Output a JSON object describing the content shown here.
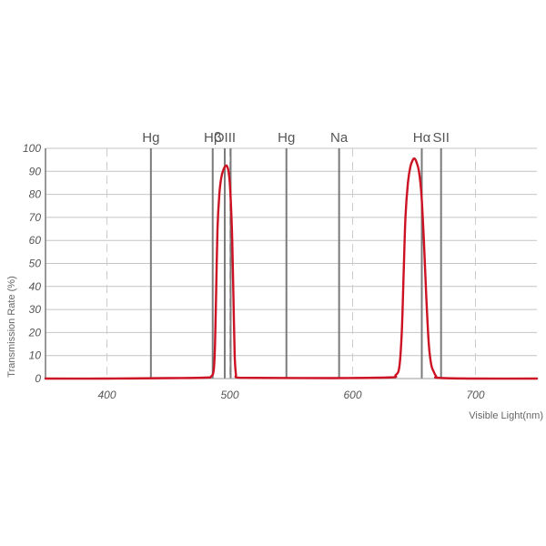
{
  "chart_data": {
    "type": "line",
    "title": "",
    "xlabel": "Visible Light(nm)",
    "ylabel": "Transmission Rate (%)",
    "xlim": [
      350,
      750
    ],
    "ylim": [
      0,
      100
    ],
    "x_ticks": [
      400,
      500,
      600,
      700
    ],
    "y_ticks": [
      0,
      10,
      20,
      30,
      40,
      50,
      60,
      70,
      80,
      90,
      100
    ],
    "grid": {
      "y": true,
      "x": "dashed at ticks"
    },
    "emission_lines": [
      {
        "label": "Hg",
        "x": 435.8
      },
      {
        "label": "Hβ",
        "x": 486.1
      },
      {
        "label": "OIII",
        "x": 495.9
      },
      {
        "label": "OIII",
        "x": 500.7,
        "hide_label": true
      },
      {
        "label": "Hg",
        "x": 546.1
      },
      {
        "label": "Na",
        "x": 589.0
      },
      {
        "label": "Hα",
        "x": 656.3
      },
      {
        "label": "SII",
        "x": 672.0
      }
    ],
    "series": [
      {
        "color": "#cc1122",
        "points": [
          [
            350,
            0
          ],
          [
            400,
            0
          ],
          [
            450,
            0.2
          ],
          [
            480,
            0.4
          ],
          [
            485,
            1
          ],
          [
            487,
            4
          ],
          [
            488,
            15
          ],
          [
            489,
            40
          ],
          [
            490,
            65
          ],
          [
            491.5,
            80
          ],
          [
            493,
            87
          ],
          [
            495,
            91
          ],
          [
            497,
            92.5
          ],
          [
            498,
            92
          ],
          [
            499,
            90
          ],
          [
            500,
            85
          ],
          [
            501,
            75
          ],
          [
            502,
            60
          ],
          [
            503,
            35
          ],
          [
            504,
            10
          ],
          [
            505,
            2
          ],
          [
            506,
            0.5
          ],
          [
            520,
            0.3
          ],
          [
            580,
            0.2
          ],
          [
            630,
            0.5
          ],
          [
            635,
            1.5
          ],
          [
            638,
            5
          ],
          [
            640,
            20
          ],
          [
            641.5,
            45
          ],
          [
            643,
            70
          ],
          [
            645,
            85
          ],
          [
            647,
            92
          ],
          [
            649,
            95
          ],
          [
            650.5,
            95.5
          ],
          [
            652,
            94
          ],
          [
            654,
            90
          ],
          [
            656,
            80
          ],
          [
            658,
            60
          ],
          [
            660,
            35
          ],
          [
            662,
            15
          ],
          [
            664,
            6
          ],
          [
            666,
            3
          ],
          [
            668,
            1
          ],
          [
            670,
            0.3
          ],
          [
            700,
            0
          ],
          [
            750,
            0
          ]
        ]
      }
    ]
  }
}
